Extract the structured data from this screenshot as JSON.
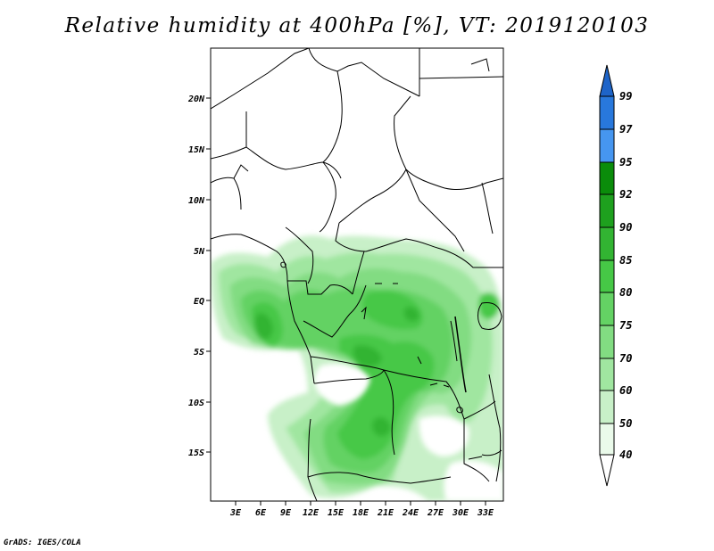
{
  "title": "Relative humidity at 400hPa [%], VT: 2019120103",
  "credit": "GrADS: IGES/COLA",
  "map": {
    "lat_ticks": [
      "20N",
      "15N",
      "10N",
      "5N",
      "EQ",
      "5S",
      "10S",
      "15S"
    ],
    "lon_ticks": [
      "3E",
      "6E",
      "9E",
      "12E",
      "15E",
      "18E",
      "21E",
      "24E",
      "27E",
      "30E",
      "33E"
    ],
    "lon_range": [
      0,
      35
    ],
    "lat_range": [
      -20,
      24.5
    ]
  },
  "colorbar": {
    "labels": [
      "99",
      "97",
      "95",
      "92",
      "90",
      "85",
      "80",
      "75",
      "70",
      "60",
      "50",
      "40"
    ],
    "colors": {
      "above_99": "#1e64c8",
      "97_99": "#2878dc",
      "95_97": "#4696f0",
      "92_95": "#0a8c0a",
      "90_92": "#1ea01e",
      "85_90": "#32b432",
      "80_85": "#46c846",
      "75_80": "#64d264",
      "70_75": "#82dc82",
      "60_70": "#a0e6a0",
      "50_60": "#c8f0c8",
      "40_50": "#eafaea",
      "below_40": "#ffffff"
    }
  }
}
